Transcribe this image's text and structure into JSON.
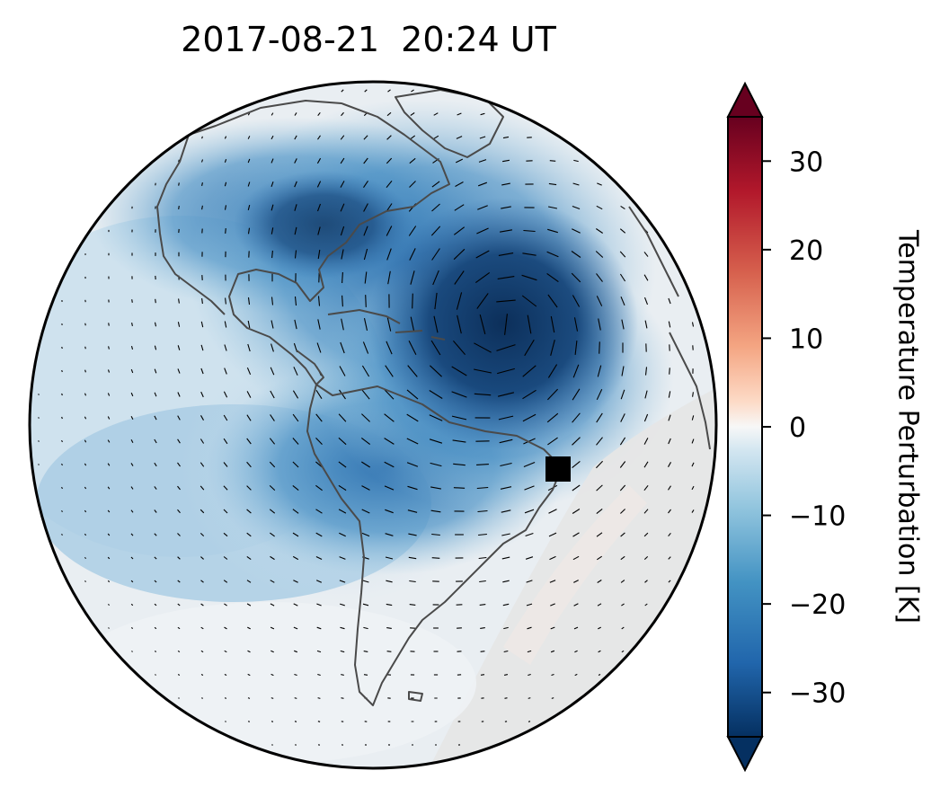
{
  "title": "2017-08-21  20:24 UT",
  "colorbar": {
    "label": "Temperature Perturbation [K]",
    "min": -35,
    "max": 35,
    "ticks": [
      {
        "value": 30,
        "label": "30"
      },
      {
        "value": 20,
        "label": "20"
      },
      {
        "value": 10,
        "label": "10"
      },
      {
        "value": 0,
        "label": "0"
      },
      {
        "value": -10,
        "label": "−10"
      },
      {
        "value": -20,
        "label": "−20"
      },
      {
        "value": -30,
        "label": "−30"
      }
    ],
    "colormap": "RdBu_r",
    "extend": "both"
  },
  "map": {
    "projection": "orthographic",
    "region": "Americas and Atlantic",
    "features": [
      "coastlines",
      "wind vectors",
      "temperature perturbation field"
    ],
    "marker": {
      "shape": "square",
      "color": "#000000",
      "location": "eastern Brazil coast"
    }
  },
  "colors": {
    "deep_blue": "#0f3a6a",
    "mid_blue": "#3f86bf",
    "light_blue": "#b7d5e8",
    "neutral": "#f2f2f2",
    "coast": "#444444"
  }
}
